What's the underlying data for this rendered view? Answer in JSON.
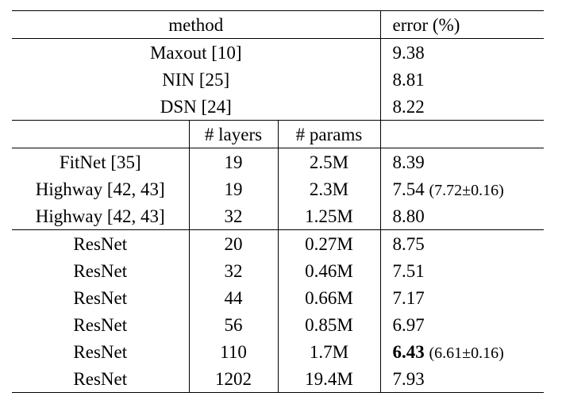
{
  "header": {
    "method": "method",
    "error": "error (%)"
  },
  "baselines": [
    {
      "method": "Maxout [10]",
      "error": "9.38"
    },
    {
      "method": "NIN [25]",
      "error": "8.81"
    },
    {
      "method": "DSN [24]",
      "error": "8.22"
    }
  ],
  "subheader": {
    "layers": "# layers",
    "params": "# params"
  },
  "group1": [
    {
      "method": "FitNet [35]",
      "layers": "19",
      "params": "2.5M",
      "error": "8.39",
      "note": ""
    },
    {
      "method": "Highway [42, 43]",
      "layers": "19",
      "params": "2.3M",
      "error": "7.54",
      "note": "(7.72±0.16)"
    },
    {
      "method": "Highway [42, 43]",
      "layers": "32",
      "params": "1.25M",
      "error": "8.80",
      "note": ""
    }
  ],
  "group2": [
    {
      "method": "ResNet",
      "layers": "20",
      "params": "0.27M",
      "error": "8.75",
      "note": ""
    },
    {
      "method": "ResNet",
      "layers": "32",
      "params": "0.46M",
      "error": "7.51",
      "note": ""
    },
    {
      "method": "ResNet",
      "layers": "44",
      "params": "0.66M",
      "error": "7.17",
      "note": ""
    },
    {
      "method": "ResNet",
      "layers": "56",
      "params": "0.85M",
      "error": "6.97",
      "note": ""
    },
    {
      "method": "ResNet",
      "layers": "110",
      "params": "1.7M",
      "error": "6.43",
      "note": "(6.61±0.16)"
    },
    {
      "method": "ResNet",
      "layers": "1202",
      "params": "19.4M",
      "error": "7.93",
      "note": ""
    }
  ]
}
